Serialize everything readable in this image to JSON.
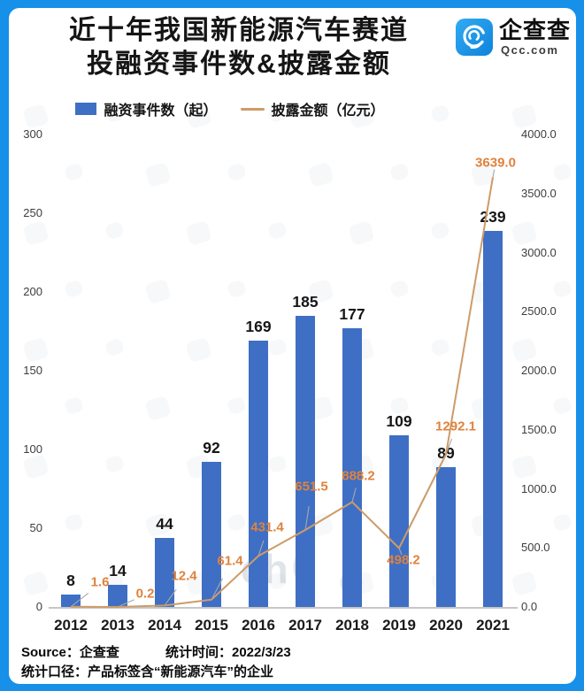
{
  "colors": {
    "frame_blue": "#1690E9",
    "card_white": "#FFFFFF",
    "bar_blue": "#3E6FC4",
    "line_orange": "#CD9B69",
    "line_label_orange": "#E0823C",
    "axis_gray": "#3D3D3D"
  },
  "header": {
    "title_line1": "近十年我国新能源汽车赛道",
    "title_line2": "投融资事件数&披露金额",
    "logo": {
      "icon": "qcc-logo-icon",
      "name": "企查查",
      "domain": "Qcc.com"
    }
  },
  "legend": [
    {
      "label": "融资事件数（起）",
      "swatch": "bar-swatch-icon",
      "color": "#3E6FC4"
    },
    {
      "label": "披露金额（亿元）",
      "swatch": "line-swatch-icon",
      "color": "#CD9B69"
    }
  ],
  "chart_data": {
    "type": "bar",
    "title": "近十年我国新能源汽车赛道投融资事件数&披露金额",
    "categories": [
      "2012",
      "2013",
      "2014",
      "2015",
      "2016",
      "2017",
      "2018",
      "2019",
      "2020",
      "2021"
    ],
    "series": [
      {
        "name": "融资事件数（起）",
        "type": "bar",
        "axis": "left",
        "color": "#3E6FC4",
        "values": [
          8,
          14,
          44,
          92,
          169,
          185,
          177,
          109,
          89,
          239
        ]
      },
      {
        "name": "披露金额（亿元）",
        "type": "line",
        "axis": "right",
        "color": "#CD9B69",
        "label_color": "#E0823C",
        "values": [
          1.6,
          0.2,
          12.4,
          61.4,
          431.4,
          651.5,
          888.2,
          498.2,
          1292.1,
          3639.0
        ]
      }
    ],
    "left_axis": {
      "min": 0,
      "max": 300,
      "ticks": [
        0,
        50,
        100,
        150,
        200,
        250,
        300
      ]
    },
    "right_axis": {
      "min": 0,
      "max": 4000,
      "ticks": [
        "0.0",
        "500.0",
        "1000.0",
        "1500.0",
        "2000.0",
        "2500.0",
        "3000.0",
        "3500.0",
        "4000.0"
      ]
    },
    "grid": false,
    "legend_position": "top"
  },
  "footer": {
    "source": "Source：企查查",
    "stat_time": "统计时间：2022/3/23",
    "caliber": "统计口径：产品标签含“新能源汽车”的企业"
  },
  "watermark": {
    "letters": [
      "z",
      "ch",
      "6",
      "o"
    ]
  }
}
